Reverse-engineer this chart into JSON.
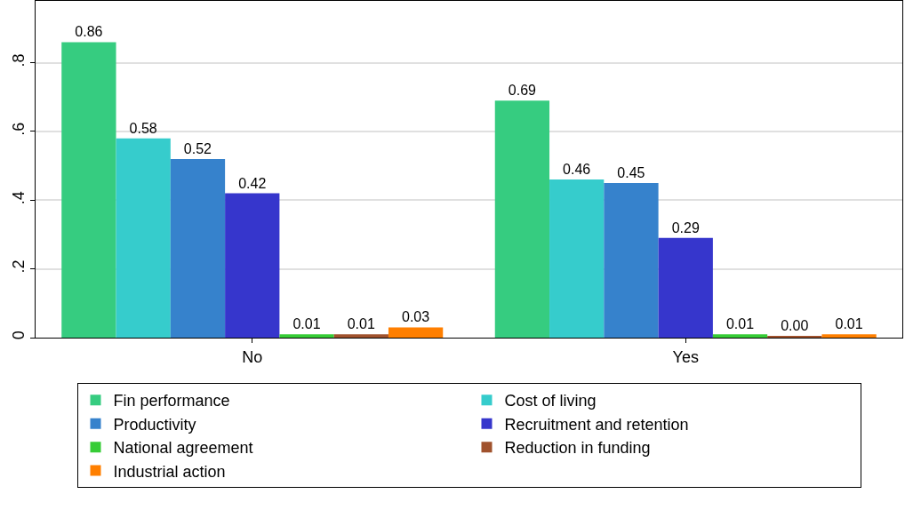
{
  "chart_data": {
    "type": "bar",
    "categories": [
      "No",
      "Yes"
    ],
    "series": [
      {
        "name": "Fin performance",
        "color": "#36cc80",
        "values": [
          0.86,
          0.69
        ],
        "value_labels": [
          "0.86",
          "0.69"
        ]
      },
      {
        "name": "Cost of living",
        "color": "#36cccc",
        "values": [
          0.58,
          0.46
        ],
        "value_labels": [
          "0.58",
          "0.46"
        ]
      },
      {
        "name": "Productivity",
        "color": "#3682cc",
        "values": [
          0.52,
          0.45
        ],
        "value_labels": [
          "0.52",
          "0.45"
        ]
      },
      {
        "name": "Recruitment and retention",
        "color": "#3636cc",
        "values": [
          0.42,
          0.29
        ],
        "value_labels": [
          "0.42",
          "0.29"
        ]
      },
      {
        "name": "National agreement",
        "color": "#36cc36",
        "values": [
          0.01,
          0.01
        ],
        "value_labels": [
          "0.01",
          "0.01"
        ]
      },
      {
        "name": "Reduction in funding",
        "color": "#a0522d",
        "values": [
          0.01,
          0.004
        ],
        "value_labels": [
          "0.01",
          "0.00"
        ]
      },
      {
        "name": "Industrial action",
        "color": "#ff7f00",
        "values": [
          0.03,
          0.01
        ],
        "value_labels": [
          "0.03",
          "0.01"
        ]
      }
    ],
    "ylim": [
      0,
      0.98
    ],
    "yticks": [
      0,
      {
        "value": 0.2,
        "label": ".2"
      },
      {
        "value": 0.4,
        "label": ".4"
      },
      {
        "value": 0.6,
        "label": ".6"
      },
      {
        "value": 0.8,
        "label": ".8"
      }
    ],
    "grid": "y",
    "legend": "bottom"
  }
}
